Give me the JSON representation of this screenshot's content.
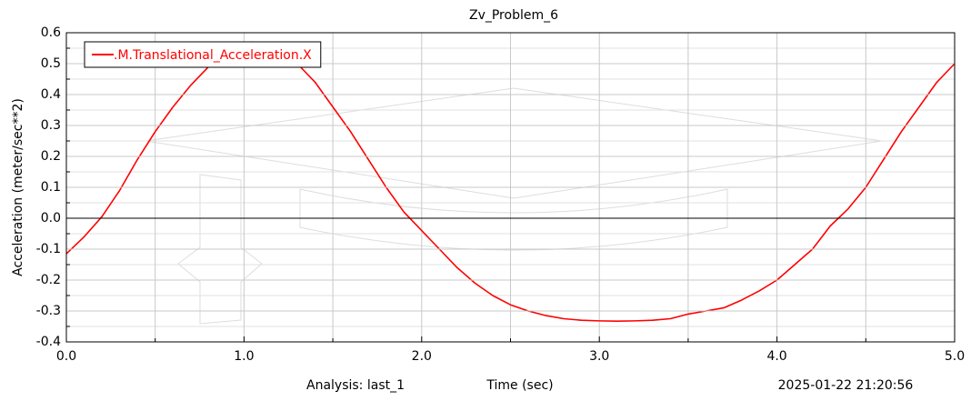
{
  "chart_data": {
    "type": "line",
    "title": "Zv_Problem_6",
    "x_label": "Time (sec)",
    "y_label": "Acceleration (meter/sec**2)",
    "footer_left": "Analysis:  last_1",
    "footer_right": "2025-01-22 21:20:56",
    "x": [
      0,
      0.1,
      0.2,
      0.3,
      0.4,
      0.5,
      0.6,
      0.7,
      0.8,
      0.9,
      1.0,
      1.05,
      1.1,
      1.2,
      1.3,
      1.4,
      1.5,
      1.6,
      1.7,
      1.8,
      1.9,
      2.0,
      2.1,
      2.2,
      2.3,
      2.4,
      2.5,
      2.6,
      2.7,
      2.8,
      2.9,
      3.0,
      3.1,
      3.2,
      3.3,
      3.4,
      3.5,
      3.6,
      3.7,
      3.8,
      3.9,
      4.0,
      4.1,
      4.2,
      4.3,
      4.4,
      4.5,
      4.6,
      4.7,
      4.8,
      4.9,
      5.0
    ],
    "series": [
      {
        "name": ".M.Translational_Acceleration.X",
        "color": "#ff0000",
        "values": [
          -0.115,
          -0.06,
          0.005,
          0.09,
          0.19,
          0.28,
          0.36,
          0.43,
          0.49,
          0.54,
          0.565,
          0.57,
          0.565,
          0.55,
          0.5,
          0.44,
          0.36,
          0.28,
          0.19,
          0.1,
          0.02,
          -0.04,
          -0.1,
          -0.16,
          -0.21,
          -0.25,
          -0.28,
          -0.3,
          -0.315,
          -0.325,
          -0.33,
          -0.332,
          -0.333,
          -0.332,
          -0.33,
          -0.325,
          -0.31,
          -0.3,
          -0.29,
          -0.265,
          -0.235,
          -0.2,
          -0.15,
          -0.1,
          -0.025,
          0.03,
          0.1,
          0.19,
          0.28,
          0.36,
          0.44,
          0.5
        ]
      }
    ],
    "xlim": [
      0,
      5
    ],
    "xticks": [
      {
        "value": 0,
        "label": "0.0"
      },
      {
        "value": 1,
        "label": "1.0"
      },
      {
        "value": 2,
        "label": "2.0"
      },
      {
        "value": 3,
        "label": "3.0"
      },
      {
        "value": 4,
        "label": "4.0"
      },
      {
        "value": 5,
        "label": "5.0"
      }
    ],
    "ylim": [
      -0.4,
      0.6
    ],
    "yticks": [
      -0.4,
      -0.3,
      -0.2,
      -0.1,
      {
        "value": 0,
        "label": "0.0"
      },
      0.1,
      0.2,
      0.3,
      0.4,
      0.5,
      0.6
    ],
    "grid": true,
    "legend": "top-left"
  }
}
